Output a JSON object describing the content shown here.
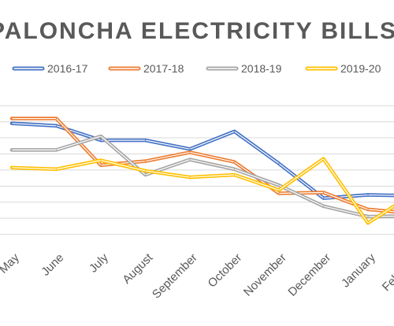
{
  "chart_data": {
    "type": "line",
    "title": "PALONCHA ELECTRICITY BILLS",
    "categories": [
      "May",
      "June",
      "July",
      "August",
      "September",
      "October",
      "November",
      "December",
      "January",
      "February"
    ],
    "series": [
      {
        "name": "2016-17",
        "color": "#4472C4",
        "values": [
          1580,
          1550,
          1370,
          1370,
          1260,
          1480,
          1080,
          650,
          690,
          680
        ]
      },
      {
        "name": "2017-18",
        "color": "#ED7D31",
        "values": [
          1640,
          1640,
          1060,
          1110,
          1220,
          1100,
          710,
          720,
          510,
          460
        ]
      },
      {
        "name": "2018-19",
        "color": "#A5A5A5",
        "values": [
          1250,
          1250,
          1420,
          940,
          1130,
          1010,
          810,
          550,
          420,
          430
        ]
      },
      {
        "name": "2019-20",
        "color": "#FFC000",
        "values": [
          1030,
          1010,
          1120,
          990,
          910,
          940,
          750,
          1140,
          340,
          700
        ]
      }
    ],
    "grid": true,
    "legend": "top"
  }
}
